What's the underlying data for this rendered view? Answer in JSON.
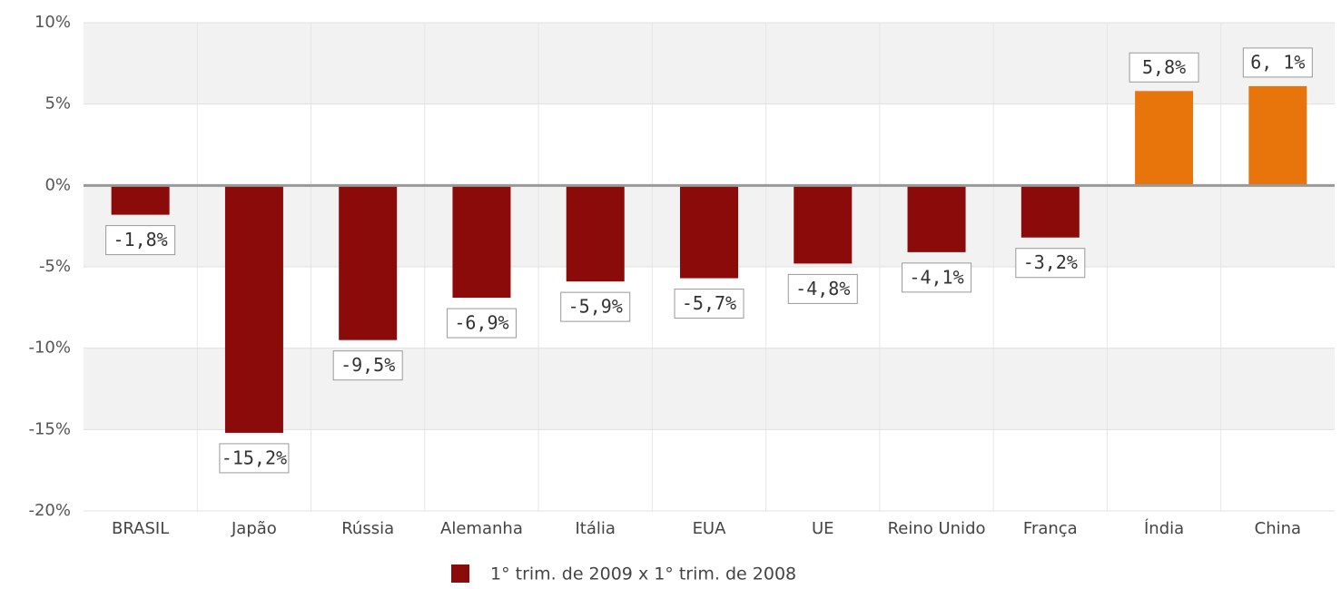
{
  "chart_data": {
    "type": "bar",
    "categories": [
      "BRASIL",
      "Japão",
      "Rússia",
      "Alemanha",
      "Itália",
      "EUA",
      "UE",
      "Reino Unido",
      "França",
      "Índia",
      "China"
    ],
    "series": [
      {
        "name": "1° trim. de 2009 x 1° trim. de 2008",
        "color": "#8b0a0a",
        "colors": [
          "#8b0a0a",
          "#8b0a0a",
          "#8b0a0a",
          "#8b0a0a",
          "#8b0a0a",
          "#8b0a0a",
          "#8b0a0a",
          "#8b0a0a",
          "#8b0a0a",
          "#e8740c",
          "#e8740c"
        ],
        "values": [
          -1.8,
          -15.2,
          -9.5,
          -6.9,
          -5.9,
          -5.7,
          -4.8,
          -4.1,
          -3.2,
          5.8,
          6.1
        ],
        "value_labels": [
          "-1,8%",
          "-15,2%",
          "-9,5%",
          "-6,9%",
          "-5,9%",
          "-5,7%",
          "-4,8%",
          "-4,1%",
          "-3,2%",
          "5,8%",
          "6, 1%"
        ]
      }
    ],
    "ylim": [
      -20,
      10
    ],
    "yticks": [
      {
        "value": -20,
        "label": "-20%"
      },
      {
        "value": -15,
        "label": "-15%"
      },
      {
        "value": -10,
        "label": "-10%"
      },
      {
        "value": -5,
        "label": "-5%"
      },
      {
        "value": 0,
        "label": "0%"
      },
      {
        "value": 5,
        "label": "5%"
      },
      {
        "value": 10,
        "label": "10%"
      }
    ],
    "grid": true
  }
}
